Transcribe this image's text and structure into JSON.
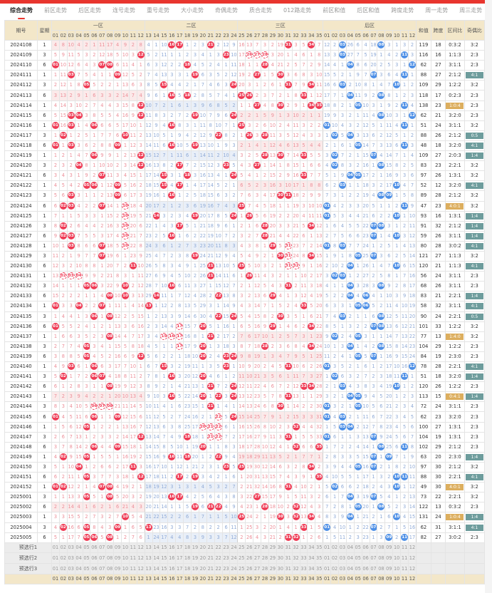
{
  "nav": {
    "tabs": [
      "综合走势",
      "前区走势",
      "后区走势",
      "连号走势",
      "重号走势",
      "大小走势",
      "奇偶走势",
      "质合走势",
      "012路走势",
      "前区和值",
      "后区和值",
      "跨度走势",
      "周一走势",
      "周三走势"
    ],
    "active": 0
  },
  "table": {
    "headers": {
      "period": "期号",
      "weekday": "星期",
      "zones": [
        "一区",
        "二区",
        "三区",
        "后区"
      ],
      "sum": "和值",
      "span": "跨度",
      "zone_ratio": "区间比",
      "odd_even": "奇偶比"
    },
    "front_cols": [
      "01",
      "02",
      "03",
      "04",
      "05",
      "06",
      "07",
      "08",
      "09",
      "10",
      "11",
      "12",
      "13",
      "14",
      "15",
      "16",
      "17",
      "18",
      "19",
      "20",
      "21",
      "22",
      "23",
      "24",
      "25",
      "26",
      "27",
      "28",
      "29",
      "30",
      "31",
      "32",
      "33",
      "34",
      "35"
    ],
    "back_cols": [
      "01",
      "02",
      "03",
      "04",
      "05",
      "06",
      "07",
      "08",
      "09",
      "10",
      "11",
      "12"
    ],
    "initial_omission": {
      "front": [
        4,
        8,
        10,
        4,
        2,
        1,
        11,
        17,
        4,
        9,
        2,
        8,
        4,
        1,
        10,
        null,
        null,
        1,
        2,
        3,
        null,
        2,
        12,
        9,
        16,
        13,
        7,
        3,
        2,
        19,
        null,
        3,
        5,
        null,
        7
      ],
      "back": [
        12,
        2,
        null,
        26,
        6,
        4,
        18,
        null,
        3,
        1,
        3,
        2
      ]
    },
    "rows": [
      {
        "p": "2024108",
        "w": "1",
        "f": [
          16,
          17,
          21,
          31,
          34
        ],
        "b": [
          3,
          8
        ],
        "sum": "119",
        "span": "18",
        "zr": "0:3:2",
        "oe": "3:2",
        "d": []
      },
      {
        "p": "2024109",
        "w": "3",
        "f": [
          12,
          23,
          26,
          27,
          28
        ],
        "b": [
          3,
          11
        ],
        "sum": "116",
        "span": "16",
        "zr": "1:1:3",
        "oe": "2:3",
        "d": [
          26,
          27,
          28
        ]
      },
      {
        "p": "2024110",
        "w": "6",
        "f": [
          1,
          7,
          8,
          18,
          28
        ],
        "b": [
          4,
          12
        ],
        "sum": "62",
        "span": "27",
        "zr": "3:1:1",
        "oe": "2:3",
        "d": []
      },
      {
        "p": "2024111",
        "w": "1",
        "f": [
          3,
          9,
          19,
          27,
          30
        ],
        "b": [
          7,
          11
        ],
        "sum": "88",
        "span": "27",
        "zr": "2:1:2",
        "oe": "4:1",
        "d": []
      },
      {
        "p": "2024112",
        "w": "3",
        "f": [
          5,
          15,
          24,
          31,
          34
        ],
        "b": [
          3,
          10
        ],
        "sum": "109",
        "span": "29",
        "zr": "1:2:2",
        "oe": "3:2",
        "d": []
      },
      {
        "p": "2024113",
        "w": "6",
        "f": [
          16,
          18,
          25,
          26,
          33
        ],
        "b": [
          4,
          8
        ],
        "sum": "118",
        "span": "17",
        "zr": "0:2:3",
        "oe": "2:3",
        "d": []
      },
      {
        "p": "2024114",
        "w": "1",
        "f": [
          12,
          27,
          30,
          34,
          35
        ],
        "b": [
          5,
          11
        ],
        "sum": "138",
        "span": "23",
        "zr": "1:0:4",
        "oe": "2:3",
        "d": []
      },
      {
        "p": "2024115",
        "w": "6",
        "f": [
          3,
          4,
          12,
          19,
          24
        ],
        "b": [
          8,
          12
        ],
        "sum": "62",
        "span": "21",
        "zr": "3:2:0",
        "oe": "2:3",
        "d": []
      },
      {
        "p": "2024116",
        "w": "1",
        "f": [
          1,
          3,
          6,
          16,
          25
        ],
        "b": [
          1,
          11
        ],
        "sum": "51",
        "span": "24",
        "zr": "3:1:1",
        "oe": "3:2",
        "d": []
      },
      {
        "p": "2024117",
        "w": "3",
        "f": [
          2,
          10,
          22,
          26,
          28
        ],
        "b": [
          2,
          4
        ],
        "sum": "88",
        "span": "26",
        "zr": "2:1:2",
        "oe": "0:5",
        "d": []
      },
      {
        "p": "2024118",
        "w": "6",
        "f": [
          1,
          3,
          9,
          16,
          19
        ],
        "b": [
          5,
          11
        ],
        "sum": "48",
        "span": "18",
        "zr": "3:2:0",
        "oe": "4:1",
        "d": []
      },
      {
        "p": "2024119",
        "w": "1",
        "f": [
          6,
          12,
          28,
          30,
          33
        ],
        "b": [
          2,
          7
        ],
        "sum": "109",
        "span": "27",
        "zr": "2:0:3",
        "oe": "1:4",
        "d": []
      },
      {
        "p": "2024120",
        "w": "3",
        "f": [
          4,
          12,
          17,
          23,
          27
        ],
        "b": [
          2,
          8
        ],
        "sum": "83",
        "span": "23",
        "zr": "2:2:1",
        "oe": "3:2",
        "d": []
      },
      {
        "p": "2024121",
        "w": "6",
        "f": [
          7,
          15,
          18,
          24,
          33
        ],
        "b": [
          4,
          5
        ],
        "sum": "97",
        "span": "26",
        "zr": "1:3:1",
        "oe": "3:2",
        "d": []
      },
      {
        "p": "2024122",
        "w": "1",
        "f": [
          5,
          6,
          9,
          15,
          17
        ],
        "b": [
          3,
          10
        ],
        "sum": "52",
        "span": "12",
        "zr": "3:2:0",
        "oe": "4:1",
        "d": []
      },
      {
        "p": "2024123",
        "w": "3",
        "f": [
          3,
          9,
          16,
          30,
          31
        ],
        "b": [
          8,
          9
        ],
        "sum": "89",
        "span": "28",
        "zr": "2:1:2",
        "oe": "3:2",
        "d": []
      },
      {
        "p": "2024124",
        "w": "6",
        "f": [
          2,
          3,
          7,
          10,
          25
        ],
        "b": [
          1,
          11
        ],
        "sum": "47",
        "span": "23",
        "zr": "4:0:1",
        "oe": "3:2",
        "d": [
          10
        ]
      },
      {
        "p": "2024125",
        "w": "1",
        "f": [
          10,
          14,
          19,
          24,
          26
        ],
        "b": [
          1,
          10
        ],
        "sum": "93",
        "span": "16",
        "zr": "1:3:1",
        "oe": "1:4",
        "d": [
          10
        ]
      },
      {
        "p": "2024126",
        "w": "3",
        "f": [
          2,
          10,
          17,
          28,
          34
        ],
        "b": [
          7,
          8
        ],
        "sum": "91",
        "span": "32",
        "zr": "2:1:2",
        "oe": "1:4",
        "d": [
          10
        ]
      },
      {
        "p": "2024127",
        "w": "6",
        "f": [
          2,
          3,
          10,
          16,
          28
        ],
        "b": [
          7,
          10
        ],
        "sum": "59",
        "span": "26",
        "zr": "3:1:1",
        "oe": "1:4",
        "d": [
          10
        ]
      },
      {
        "p": "2024128",
        "w": "1",
        "f": [
          3,
          7,
          10,
          29,
          31
        ],
        "b": [
          1,
          3
        ],
        "sum": "80",
        "span": "28",
        "zr": "3:0:2",
        "oe": "4:1",
        "d": [
          10,
          31
        ]
      },
      {
        "p": "2024129",
        "w": "3",
        "f": [
          7,
          19,
          30,
          31,
          34
        ],
        "b": [
          5,
          7
        ],
        "sum": "121",
        "span": "27",
        "zr": "1:1:3",
        "oe": "3:2",
        "d": [
          31
        ]
      },
      {
        "p": "2024130",
        "w": "6",
        "f": [
          11,
          21,
          25,
          31,
          32
        ],
        "b": [
          4,
          10
        ],
        "sum": "120",
        "span": "21",
        "zr": "1:1:3",
        "oe": "4:1",
        "d": [
          31,
          32
        ]
      },
      {
        "p": "2024131",
        "w": "1",
        "f": [
          2,
          3,
          4,
          21,
          26
        ],
        "b": [
          2,
          3
        ],
        "sum": "56",
        "span": "24",
        "zr": "3:1:1",
        "oe": "2:3",
        "d": [
          2,
          3,
          4
        ]
      },
      {
        "p": "2024132",
        "w": "3",
        "f": [
          5,
          6,
          10,
          16,
          31
        ],
        "b": [
          4,
          8
        ],
        "sum": "68",
        "span": "26",
        "zr": "3:1:1",
        "oe": "2:3",
        "d": []
      },
      {
        "p": "2024133",
        "w": "6",
        "f": [
          8,
          10,
          14,
          22,
          29
        ],
        "b": [
          4,
          6
        ],
        "sum": "83",
        "span": "21",
        "zr": "2:2:1",
        "oe": "1:4",
        "d": []
      },
      {
        "p": "2024134",
        "w": "1",
        "f": [
          1,
          4,
          7,
          13,
          33
        ],
        "b": [
          5,
          6
        ],
        "sum": "58",
        "span": "32",
        "zr": "3:1:1",
        "oe": "4:1",
        "d": []
      },
      {
        "p": "2024135",
        "w": "3",
        "f": [
          6,
          8,
          22,
          24,
          30
        ],
        "b": [
          3,
          8
        ],
        "sum": "90",
        "span": "24",
        "zr": "2:2:1",
        "oe": "0:5",
        "d": []
      },
      {
        "p": "2024136",
        "w": "6",
        "f": [
          1,
          17,
          20,
          29,
          34
        ],
        "b": [
          7,
          8
        ],
        "sum": "101",
        "span": "33",
        "zr": "1:2:2",
        "oe": "3:2",
        "d": [
          17
        ]
      },
      {
        "p": "2024137",
        "w": "1",
        "f": [
          8,
          15,
          16,
          17,
          21
        ],
        "b": [
          2,
          5
        ],
        "sum": "77",
        "span": "13",
        "zr": "1:4:0",
        "oe": "3:2",
        "d": [
          15,
          16,
          17
        ]
      },
      {
        "p": "2024138",
        "w": "3",
        "f": [
          5,
          17,
          20,
          28,
          34
        ],
        "b": [
          4,
          8
        ],
        "sum": "104",
        "span": "29",
        "zr": "1:2:2",
        "oe": "2:3",
        "d": [
          17
        ]
      },
      {
        "p": "2024139",
        "w": "6",
        "f": [
          5,
          12,
          20,
          23,
          24
        ],
        "b": [
          5,
          7
        ],
        "sum": "84",
        "span": "19",
        "zr": "2:3:0",
        "oe": "2:3",
        "d": []
      },
      {
        "p": "2024140",
        "w": "1",
        "f": [
          3,
          6,
          15,
          23,
          31
        ],
        "b": [
          1,
          12
        ],
        "sum": "78",
        "span": "28",
        "zr": "2:2:1",
        "oe": "4:1",
        "d": []
      },
      {
        "p": "2024141",
        "w": "3",
        "f": [
          2,
          6,
          7,
          16,
          20
        ],
        "b": [
          2,
          11
        ],
        "sum": "51",
        "span": "18",
        "zr": "3:2:0",
        "oe": "1:4",
        "d": []
      },
      {
        "p": "2024142",
        "w": "6",
        "f": [
          8,
          21,
          24,
          33,
          34
        ],
        "b": [
          3,
          10
        ],
        "sum": "120",
        "span": "26",
        "zr": "1:2:2",
        "oe": "2:3",
        "d": []
      },
      {
        "p": "2024143",
        "w": "1",
        "f": [
          16,
          20,
          22,
          24,
          31
        ],
        "b": [
          4,
          5
        ],
        "sum": "113",
        "span": "15",
        "zr": "0:4:1",
        "oe": "1:4",
        "d": []
      },
      {
        "p": "2024144",
        "w": "3",
        "f": [
          6,
          7,
          8,
          21,
          30
        ],
        "b": [
          1,
          5
        ],
        "sum": "72",
        "span": "24",
        "zr": "3:1:1",
        "oe": "2:3",
        "d": [
          6,
          7,
          8
        ]
      },
      {
        "p": "2024145",
        "w": "6",
        "f": [
          1,
          6,
          9,
          22,
          24
        ],
        "b": [
          1,
          3
        ],
        "sum": "62",
        "span": "23",
        "zr": "3:2:0",
        "oe": "2:3",
        "d": [
          22
        ]
      },
      {
        "p": "2024146",
        "w": "1",
        "f": [
          5,
          20,
          21,
          22,
          32
        ],
        "b": [
          3,
          4
        ],
        "sum": "100",
        "span": "27",
        "zr": "1:3:1",
        "oe": "2:3",
        "d": [
          20,
          21,
          22
        ]
      },
      {
        "p": "2024147",
        "w": "3",
        "f": [
          12,
          18,
          21,
          22,
          31
        ],
        "b": [
          1,
          7
        ],
        "sum": "104",
        "span": "19",
        "zr": "1:3:1",
        "oe": "2:3",
        "d": [
          21,
          22
        ]
      },
      {
        "p": "2024148",
        "w": "6",
        "f": [
          6,
          9,
          20,
          32,
          35
        ],
        "b": [
          8,
          11
        ],
        "sum": "102",
        "span": "29",
        "zr": "2:1:2",
        "oe": "2:3",
        "d": []
      },
      {
        "p": "2024149",
        "w": "1",
        "f": [
          2,
          5,
          16,
          18,
          22
        ],
        "b": [
          7,
          9
        ],
        "sum": "63",
        "span": "20",
        "zr": "2:3:0",
        "oe": "1:4",
        "d": []
      },
      {
        "p": "2024150",
        "w": "3",
        "f": [
          4,
          11,
          23,
          25,
          34
        ],
        "b": [
          5,
          7
        ],
        "sum": "97",
        "span": "30",
        "zr": "2:1:2",
        "oe": "3:2",
        "d": []
      },
      {
        "p": "2024151",
        "w": "6",
        "f": [
          5,
          12,
          17,
          19,
          35
        ],
        "b": [
          10,
          11
        ],
        "sum": "88",
        "span": "30",
        "zr": "2:2:1",
        "oe": "4:1",
        "d": []
      },
      {
        "p": "2024152",
        "w": "1",
        "f": [
          1,
          2,
          7,
          8,
          31
        ],
        "b": [
          2,
          10
        ],
        "sum": "49",
        "span": "30",
        "zr": "4:0:1",
        "oe": "3:2",
        "d": []
      },
      {
        "p": "2025001",
        "w": "3",
        "f": [
          5,
          8,
          16,
          17,
          27
        ],
        "b": [
          4,
          7
        ],
        "sum": "73",
        "span": "22",
        "zr": "2:2:1",
        "oe": "3:2",
        "d": []
      },
      {
        "p": "2025002",
        "w": "6",
        "f": [
          19,
          21,
          22,
          28,
          32
        ],
        "b": [
          5,
          8
        ],
        "sum": "122",
        "span": "13",
        "zr": "0:3:2",
        "oe": "2:3",
        "d": []
      },
      {
        "p": "2025003",
        "w": "1",
        "f": [
          10,
          25,
          30,
          32,
          34
        ],
        "b": [
          4,
          10
        ],
        "sum": "131",
        "span": "24",
        "zr": "1:0:4",
        "oe": "1:4",
        "d": []
      },
      {
        "p": "2025004",
        "w": "3",
        "f": [
          2,
          5,
          9,
          13,
          33
        ],
        "b": [
          1,
          7
        ],
        "sum": "62",
        "span": "31",
        "zr": "3:1:1",
        "oe": "4:1",
        "d": []
      },
      {
        "p": "2025005",
        "w": "6",
        "f": [
          5,
          6,
          8,
          31,
          32
        ],
        "b": [
          9,
          11
        ],
        "sum": "82",
        "span": "27",
        "zr": "3:0:2",
        "oe": "2:3",
        "d": []
      }
    ],
    "preselect_rows": [
      "预选行1",
      "预选行2",
      "预选行3"
    ]
  },
  "colors": {
    "accent": "#e8352e",
    "front_ball": "#ef3b55",
    "back_ball": "#4d8fe6",
    "badge_teal": "#6d9c9c",
    "badge_orange": "#dcae5e",
    "header_bg": "#f3e7c9"
  }
}
